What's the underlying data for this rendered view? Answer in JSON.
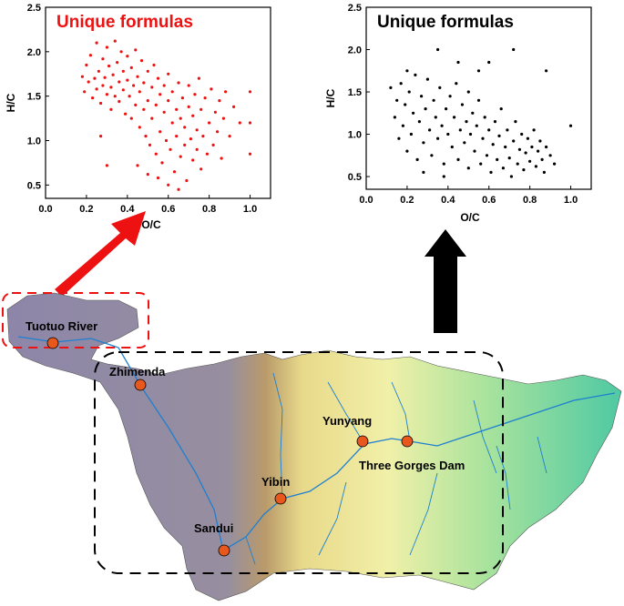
{
  "chart_data": [
    {
      "type": "scatter",
      "title": "Unique formulas",
      "xlabel": "O/C",
      "ylabel": "H/C",
      "xlim": [
        0,
        1.1
      ],
      "ylim": [
        0.35,
        2.5
      ],
      "xticks": [
        "0.0",
        "0.2",
        "0.4",
        "0.6",
        "0.8",
        "1.0"
      ],
      "yticks": [
        "0.5",
        "1.0",
        "1.5",
        "2.0",
        "2.5"
      ],
      "color": "#ee1111",
      "region": "Tuotuo River",
      "points": [
        [
          0.18,
          1.72
        ],
        [
          0.19,
          1.55
        ],
        [
          0.2,
          1.85
        ],
        [
          0.21,
          1.66
        ],
        [
          0.22,
          1.96
        ],
        [
          0.23,
          1.48
        ],
        [
          0.24,
          1.7
        ],
        [
          0.25,
          1.58
        ],
        [
          0.25,
          2.1
        ],
        [
          0.26,
          1.78
        ],
        [
          0.27,
          1.42
        ],
        [
          0.28,
          1.62
        ],
        [
          0.28,
          1.92
        ],
        [
          0.29,
          1.71
        ],
        [
          0.3,
          1.52
        ],
        [
          0.3,
          2.05
        ],
        [
          0.31,
          1.84
        ],
        [
          0.32,
          1.6
        ],
        [
          0.32,
          1.35
        ],
        [
          0.33,
          1.74
        ],
        [
          0.34,
          2.12
        ],
        [
          0.34,
          1.5
        ],
        [
          0.35,
          1.88
        ],
        [
          0.36,
          1.66
        ],
        [
          0.36,
          1.44
        ],
        [
          0.37,
          2.0
        ],
        [
          0.38,
          1.57
        ],
        [
          0.38,
          1.78
        ],
        [
          0.39,
          1.3
        ],
        [
          0.4,
          1.68
        ],
        [
          0.4,
          1.95
        ],
        [
          0.41,
          1.5
        ],
        [
          0.42,
          1.82
        ],
        [
          0.42,
          1.25
        ],
        [
          0.43,
          1.62
        ],
        [
          0.44,
          2.02
        ],
        [
          0.44,
          1.4
        ],
        [
          0.45,
          1.72
        ],
        [
          0.46,
          1.55
        ],
        [
          0.46,
          1.15
        ],
        [
          0.47,
          1.9
        ],
        [
          0.48,
          1.35
        ],
        [
          0.48,
          1.65
        ],
        [
          0.49,
          1.05
        ],
        [
          0.5,
          1.78
        ],
        [
          0.5,
          1.45
        ],
        [
          0.51,
          0.95
        ],
        [
          0.52,
          1.6
        ],
        [
          0.52,
          1.25
        ],
        [
          0.53,
          1.85
        ],
        [
          0.54,
          1.4
        ],
        [
          0.54,
          0.85
        ],
        [
          0.55,
          1.7
        ],
        [
          0.56,
          1.1
        ],
        [
          0.56,
          1.52
        ],
        [
          0.57,
          0.75
        ],
        [
          0.58,
          1.32
        ],
        [
          0.58,
          1.62
        ],
        [
          0.59,
          1.0
        ],
        [
          0.6,
          1.45
        ],
        [
          0.6,
          1.75
        ],
        [
          0.61,
          0.9
        ],
        [
          0.62,
          1.2
        ],
        [
          0.62,
          1.55
        ],
        [
          0.63,
          0.65
        ],
        [
          0.64,
          1.35
        ],
        [
          0.64,
          1.05
        ],
        [
          0.65,
          1.65
        ],
        [
          0.66,
          0.82
        ],
        [
          0.66,
          1.25
        ],
        [
          0.67,
          1.48
        ],
        [
          0.68,
          0.95
        ],
        [
          0.68,
          1.15
        ],
        [
          0.69,
          0.55
        ],
        [
          0.7,
          1.38
        ],
        [
          0.7,
          1.62
        ],
        [
          0.71,
          1.02
        ],
        [
          0.72,
          0.78
        ],
        [
          0.72,
          1.28
        ],
        [
          0.73,
          1.52
        ],
        [
          0.74,
          0.9
        ],
        [
          0.74,
          1.12
        ],
        [
          0.75,
          1.7
        ],
        [
          0.76,
          1.35
        ],
        [
          0.76,
          0.68
        ],
        [
          0.77,
          1.05
        ],
        [
          0.78,
          1.48
        ],
        [
          0.79,
          0.85
        ],
        [
          0.8,
          1.2
        ],
        [
          0.81,
          1.58
        ],
        [
          0.82,
          0.95
        ],
        [
          0.83,
          1.32
        ],
        [
          0.84,
          1.1
        ],
        [
          0.85,
          1.45
        ],
        [
          0.86,
          0.8
        ],
        [
          0.87,
          1.25
        ],
        [
          0.88,
          1.55
        ],
        [
          0.9,
          1.05
        ],
        [
          0.92,
          1.38
        ],
        [
          0.95,
          1.2
        ],
        [
          1.0,
          1.55
        ],
        [
          1.0,
          1.2
        ],
        [
          1.0,
          0.85
        ],
        [
          0.3,
          0.72
        ],
        [
          0.27,
          1.05
        ],
        [
          0.45,
          0.72
        ],
        [
          0.5,
          0.62
        ],
        [
          0.6,
          0.5
        ],
        [
          0.65,
          0.45
        ],
        [
          0.55,
          0.58
        ]
      ]
    },
    {
      "type": "scatter",
      "title": "Unique formulas",
      "xlabel": "O/C",
      "ylabel": "H/C",
      "xlim": [
        0,
        1.1
      ],
      "ylim": [
        0.35,
        2.5
      ],
      "xticks": [
        "0.0",
        "0.2",
        "0.4",
        "0.6",
        "0.8",
        "1.0"
      ],
      "yticks": [
        "0.5",
        "1.0",
        "1.5",
        "2.0",
        "2.5"
      ],
      "color": "#000000",
      "region": "Zhimenda to Three Gorges Dam",
      "points": [
        [
          0.12,
          1.55
        ],
        [
          0.14,
          1.2
        ],
        [
          0.15,
          1.4
        ],
        [
          0.16,
          0.95
        ],
        [
          0.17,
          1.6
        ],
        [
          0.18,
          1.1
        ],
        [
          0.19,
          1.35
        ],
        [
          0.2,
          0.8
        ],
        [
          0.21,
          1.5
        ],
        [
          0.22,
          1.0
        ],
        [
          0.23,
          1.25
        ],
        [
          0.24,
          1.7
        ],
        [
          0.25,
          0.7
        ],
        [
          0.26,
          1.15
        ],
        [
          0.27,
          1.45
        ],
        [
          0.28,
          0.9
        ],
        [
          0.29,
          1.3
        ],
        [
          0.3,
          1.65
        ],
        [
          0.31,
          1.05
        ],
        [
          0.32,
          0.75
        ],
        [
          0.33,
          1.4
        ],
        [
          0.34,
          1.2
        ],
        [
          0.35,
          0.95
        ],
        [
          0.36,
          1.55
        ],
        [
          0.37,
          1.1
        ],
        [
          0.38,
          0.65
        ],
        [
          0.39,
          1.3
        ],
        [
          0.4,
          1.0
        ],
        [
          0.41,
          1.45
        ],
        [
          0.42,
          0.85
        ],
        [
          0.43,
          1.2
        ],
        [
          0.44,
          1.6
        ],
        [
          0.45,
          0.7
        ],
        [
          0.46,
          1.05
        ],
        [
          0.47,
          1.35
        ],
        [
          0.48,
          0.9
        ],
        [
          0.49,
          1.15
        ],
        [
          0.5,
          1.5
        ],
        [
          0.5,
          0.6
        ],
        [
          0.51,
          1.0
        ],
        [
          0.52,
          1.25
        ],
        [
          0.53,
          0.8
        ],
        [
          0.54,
          1.1
        ],
        [
          0.55,
          1.4
        ],
        [
          0.56,
          0.65
        ],
        [
          0.57,
          0.95
        ],
        [
          0.58,
          1.2
        ],
        [
          0.59,
          0.75
        ],
        [
          0.6,
          1.05
        ],
        [
          0.61,
          0.55
        ],
        [
          0.62,
          0.88
        ],
        [
          0.63,
          1.15
        ],
        [
          0.64,
          0.7
        ],
        [
          0.65,
          0.98
        ],
        [
          0.66,
          1.3
        ],
        [
          0.67,
          0.6
        ],
        [
          0.68,
          0.85
        ],
        [
          0.69,
          1.05
        ],
        [
          0.7,
          0.72
        ],
        [
          0.71,
          0.5
        ],
        [
          0.72,
          0.92
        ],
        [
          0.73,
          1.15
        ],
        [
          0.74,
          0.65
        ],
        [
          0.75,
          0.82
        ],
        [
          0.76,
          1.0
        ],
        [
          0.77,
          0.58
        ],
        [
          0.78,
          0.78
        ],
        [
          0.79,
          0.95
        ],
        [
          0.8,
          0.68
        ],
        [
          0.81,
          0.85
        ],
        [
          0.82,
          1.05
        ],
        [
          0.83,
          0.62
        ],
        [
          0.84,
          0.8
        ],
        [
          0.85,
          0.92
        ],
        [
          0.86,
          0.7
        ],
        [
          0.87,
          0.55
        ],
        [
          0.88,
          0.85
        ],
        [
          0.9,
          0.75
        ],
        [
          0.92,
          0.65
        ],
        [
          0.35,
          2.0
        ],
        [
          0.45,
          1.85
        ],
        [
          0.55,
          1.75
        ],
        [
          0.6,
          1.85
        ],
        [
          0.72,
          2.0
        ],
        [
          0.88,
          1.75
        ],
        [
          1.0,
          1.1
        ],
        [
          0.2,
          1.75
        ],
        [
          0.28,
          0.55
        ],
        [
          0.38,
          0.5
        ]
      ]
    }
  ],
  "map": {
    "sites": [
      {
        "name": "Tuotuo River"
      },
      {
        "name": "Zhimenda"
      },
      {
        "name": "Yunyang"
      },
      {
        "name": "Three Gorges Dam"
      },
      {
        "name": "Yibin"
      },
      {
        "name": "Sandui"
      }
    ],
    "colors": {
      "site_marker": "#e8581c",
      "red_arrow": "#ee1111",
      "black_arrow": "#000000",
      "river": "#1e7fd0",
      "plateau": "#8d86a8",
      "lowland": "#6fd29a",
      "midland": "#f1f0a8"
    }
  }
}
